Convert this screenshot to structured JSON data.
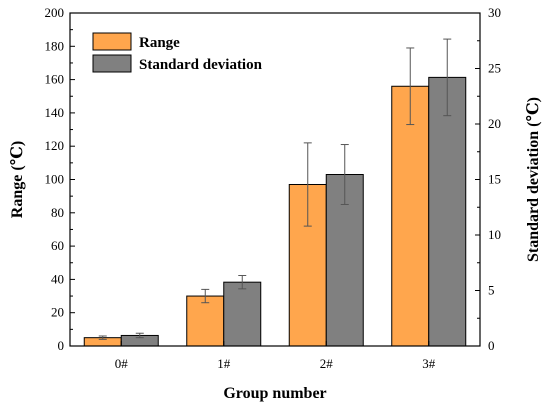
{
  "chart_data": {
    "type": "bar",
    "categories": [
      "0#",
      "1#",
      "2#",
      "3#"
    ],
    "xlabel": "Group number",
    "ylabel": "Range (℃)",
    "y2label": "Standard deviation (℃)",
    "ylim": [
      0,
      200
    ],
    "y2lim": [
      0,
      30
    ],
    "yticks": [
      "0",
      "20",
      "40",
      "60",
      "80",
      "100",
      "120",
      "140",
      "160",
      "180",
      "200"
    ],
    "y2ticks": [
      "0",
      "5",
      "10",
      "15",
      "20",
      "25",
      "30"
    ],
    "series": [
      {
        "name": "Range",
        "axis": "left",
        "color": "#FFA64D",
        "values": [
          5,
          30,
          97,
          156
        ],
        "error": [
          1,
          4,
          25,
          23
        ]
      },
      {
        "name": "Standard deviation",
        "axis": "right",
        "color": "#808080",
        "values": [
          0.95,
          5.75,
          15.45,
          24.2
        ],
        "error": [
          0.2,
          0.6,
          2.7,
          3.45
        ]
      }
    ],
    "legend": "top-left",
    "grid": false
  }
}
